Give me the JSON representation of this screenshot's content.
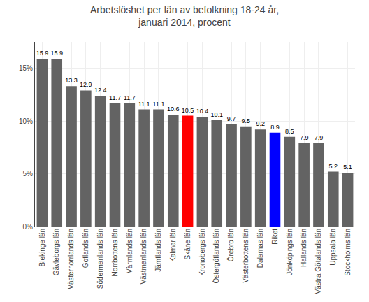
{
  "chart_data": {
    "type": "bar",
    "title": "Arbetslöshet per län av befolkning 18-24 år,\njanuari 2014, procent",
    "categories": [
      "Blekinge län",
      "Gävleborgs län",
      "Västernorrlands län",
      "Gotlands län",
      "Södermanlands län",
      "Norrbottens län",
      "Värmlands län",
      "Västmanlands län",
      "Jämtlands län",
      "Kalmar län",
      "Skåne län",
      "Kronobergs län",
      "Östergötlands län",
      "Örebro län",
      "Västerbottens län",
      "Dalarnas län",
      "Riket",
      "Jönköpings län",
      "Hallands län",
      "Västra Götalands län",
      "Uppsala län",
      "Stockholms län"
    ],
    "values": [
      15.9,
      15.9,
      13.3,
      12.9,
      12.4,
      11.7,
      11.7,
      11.1,
      11.1,
      10.6,
      10.5,
      10.4,
      10.1,
      9.7,
      9.5,
      9.2,
      8.9,
      8.5,
      7.9,
      7.9,
      5.2,
      5.1
    ],
    "colors": [
      "#636363",
      "#636363",
      "#636363",
      "#636363",
      "#636363",
      "#636363",
      "#636363",
      "#636363",
      "#636363",
      "#636363",
      "#ff0000",
      "#636363",
      "#636363",
      "#636363",
      "#636363",
      "#636363",
      "#0000ff",
      "#636363",
      "#636363",
      "#636363",
      "#636363",
      "#636363"
    ],
    "ylim": [
      0,
      17.5
    ],
    "yticks": [
      {
        "value": 0,
        "label": "0%"
      },
      {
        "value": 5,
        "label": "5%"
      },
      {
        "value": 10,
        "label": "10%"
      },
      {
        "value": 15,
        "label": "15%"
      }
    ],
    "grid": true,
    "data_labels": true
  }
}
